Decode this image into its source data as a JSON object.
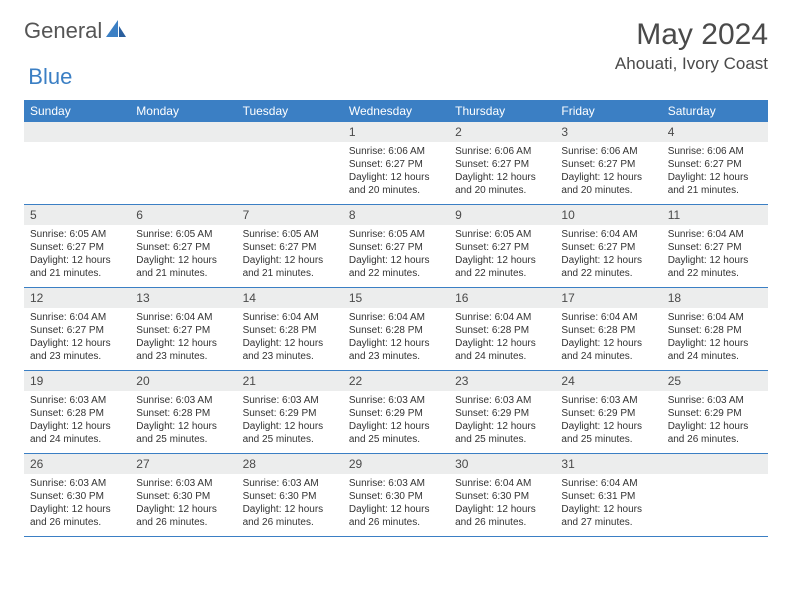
{
  "brand": {
    "part1": "General",
    "part2": "Blue"
  },
  "title": "May 2024",
  "location": "Ahouati, Ivory Coast",
  "colors": {
    "header_bg": "#3b7fc4",
    "header_text": "#ffffff",
    "daynum_bg": "#eceded",
    "border": "#3b7fc4",
    "brand_gray": "#555555",
    "brand_blue": "#3b7fc4",
    "text": "#4a4a4a"
  },
  "dayNames": [
    "Sunday",
    "Monday",
    "Tuesday",
    "Wednesday",
    "Thursday",
    "Friday",
    "Saturday"
  ],
  "weeks": [
    [
      {
        "n": "",
        "sr": "",
        "ss": "",
        "dl": ""
      },
      {
        "n": "",
        "sr": "",
        "ss": "",
        "dl": ""
      },
      {
        "n": "",
        "sr": "",
        "ss": "",
        "dl": ""
      },
      {
        "n": "1",
        "sr": "6:06 AM",
        "ss": "6:27 PM",
        "dl": "12 hours and 20 minutes."
      },
      {
        "n": "2",
        "sr": "6:06 AM",
        "ss": "6:27 PM",
        "dl": "12 hours and 20 minutes."
      },
      {
        "n": "3",
        "sr": "6:06 AM",
        "ss": "6:27 PM",
        "dl": "12 hours and 20 minutes."
      },
      {
        "n": "4",
        "sr": "6:06 AM",
        "ss": "6:27 PM",
        "dl": "12 hours and 21 minutes."
      }
    ],
    [
      {
        "n": "5",
        "sr": "6:05 AM",
        "ss": "6:27 PM",
        "dl": "12 hours and 21 minutes."
      },
      {
        "n": "6",
        "sr": "6:05 AM",
        "ss": "6:27 PM",
        "dl": "12 hours and 21 minutes."
      },
      {
        "n": "7",
        "sr": "6:05 AM",
        "ss": "6:27 PM",
        "dl": "12 hours and 21 minutes."
      },
      {
        "n": "8",
        "sr": "6:05 AM",
        "ss": "6:27 PM",
        "dl": "12 hours and 22 minutes."
      },
      {
        "n": "9",
        "sr": "6:05 AM",
        "ss": "6:27 PM",
        "dl": "12 hours and 22 minutes."
      },
      {
        "n": "10",
        "sr": "6:04 AM",
        "ss": "6:27 PM",
        "dl": "12 hours and 22 minutes."
      },
      {
        "n": "11",
        "sr": "6:04 AM",
        "ss": "6:27 PM",
        "dl": "12 hours and 22 minutes."
      }
    ],
    [
      {
        "n": "12",
        "sr": "6:04 AM",
        "ss": "6:27 PM",
        "dl": "12 hours and 23 minutes."
      },
      {
        "n": "13",
        "sr": "6:04 AM",
        "ss": "6:27 PM",
        "dl": "12 hours and 23 minutes."
      },
      {
        "n": "14",
        "sr": "6:04 AM",
        "ss": "6:28 PM",
        "dl": "12 hours and 23 minutes."
      },
      {
        "n": "15",
        "sr": "6:04 AM",
        "ss": "6:28 PM",
        "dl": "12 hours and 23 minutes."
      },
      {
        "n": "16",
        "sr": "6:04 AM",
        "ss": "6:28 PM",
        "dl": "12 hours and 24 minutes."
      },
      {
        "n": "17",
        "sr": "6:04 AM",
        "ss": "6:28 PM",
        "dl": "12 hours and 24 minutes."
      },
      {
        "n": "18",
        "sr": "6:04 AM",
        "ss": "6:28 PM",
        "dl": "12 hours and 24 minutes."
      }
    ],
    [
      {
        "n": "19",
        "sr": "6:03 AM",
        "ss": "6:28 PM",
        "dl": "12 hours and 24 minutes."
      },
      {
        "n": "20",
        "sr": "6:03 AM",
        "ss": "6:28 PM",
        "dl": "12 hours and 25 minutes."
      },
      {
        "n": "21",
        "sr": "6:03 AM",
        "ss": "6:29 PM",
        "dl": "12 hours and 25 minutes."
      },
      {
        "n": "22",
        "sr": "6:03 AM",
        "ss": "6:29 PM",
        "dl": "12 hours and 25 minutes."
      },
      {
        "n": "23",
        "sr": "6:03 AM",
        "ss": "6:29 PM",
        "dl": "12 hours and 25 minutes."
      },
      {
        "n": "24",
        "sr": "6:03 AM",
        "ss": "6:29 PM",
        "dl": "12 hours and 25 minutes."
      },
      {
        "n": "25",
        "sr": "6:03 AM",
        "ss": "6:29 PM",
        "dl": "12 hours and 26 minutes."
      }
    ],
    [
      {
        "n": "26",
        "sr": "6:03 AM",
        "ss": "6:30 PM",
        "dl": "12 hours and 26 minutes."
      },
      {
        "n": "27",
        "sr": "6:03 AM",
        "ss": "6:30 PM",
        "dl": "12 hours and 26 minutes."
      },
      {
        "n": "28",
        "sr": "6:03 AM",
        "ss": "6:30 PM",
        "dl": "12 hours and 26 minutes."
      },
      {
        "n": "29",
        "sr": "6:03 AM",
        "ss": "6:30 PM",
        "dl": "12 hours and 26 minutes."
      },
      {
        "n": "30",
        "sr": "6:04 AM",
        "ss": "6:30 PM",
        "dl": "12 hours and 26 minutes."
      },
      {
        "n": "31",
        "sr": "6:04 AM",
        "ss": "6:31 PM",
        "dl": "12 hours and 27 minutes."
      },
      {
        "n": "",
        "sr": "",
        "ss": "",
        "dl": ""
      }
    ]
  ]
}
